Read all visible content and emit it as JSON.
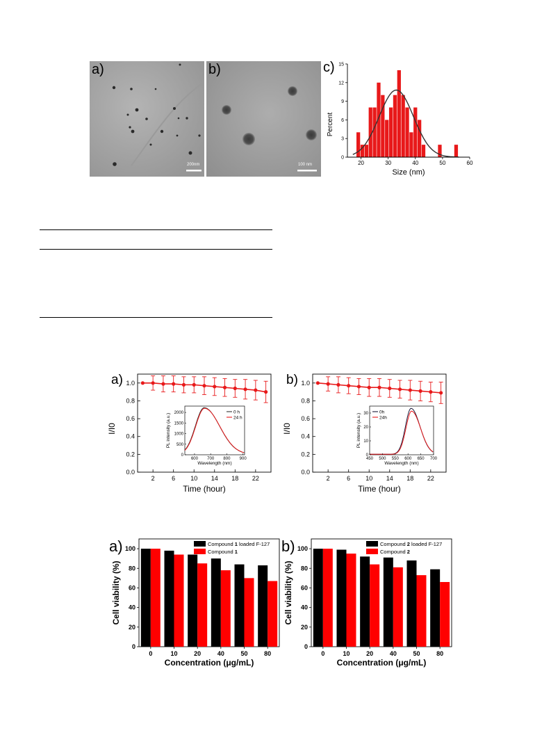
{
  "tem": {
    "panel_a": {
      "label": "a)",
      "scale_bar": "200nm"
    },
    "panel_b": {
      "label": "b)",
      "scale_bar": "100 nm"
    }
  },
  "histogram": {
    "label": "c)",
    "chart_data": {
      "type": "bar",
      "xlabel": "Size (nm)",
      "ylabel": "Percent",
      "xlim": [
        15,
        60
      ],
      "ylim": [
        0,
        15
      ],
      "x_ticks": [
        20,
        30,
        40,
        50,
        60
      ],
      "y_ticks": [
        0,
        3,
        6,
        9,
        12,
        15
      ],
      "bin_width": 1.5,
      "bin_centers": [
        19,
        20.5,
        22,
        23.5,
        25,
        26.5,
        28,
        29.5,
        31,
        32.5,
        34,
        35.5,
        37,
        38.5,
        40,
        41.5,
        43,
        49,
        55
      ],
      "values": [
        4,
        2,
        2,
        8,
        8,
        12,
        10,
        6,
        8,
        10,
        14,
        10,
        8,
        4,
        8,
        6,
        2,
        2,
        2
      ],
      "fit": {
        "type": "gaussian",
        "center": 33,
        "amplitude": 10.8,
        "sigma": 6.3
      },
      "bar_color": "#e8191a",
      "fit_color": "#333333"
    }
  },
  "stability": [
    {
      "label": "a)",
      "chart_data": {
        "type": "line",
        "xlabel": "Time (hour)",
        "ylabel": "I/I0",
        "xlim": [
          -1,
          25
        ],
        "ylim": [
          0,
          1.1
        ],
        "x_ticks": [
          2,
          6,
          10,
          14,
          18,
          22
        ],
        "y_ticks": [
          0.0,
          0.2,
          0.4,
          0.6,
          0.8,
          1.0
        ],
        "x": [
          0,
          2,
          4,
          6,
          8,
          10,
          12,
          14,
          16,
          18,
          20,
          22,
          24
        ],
        "y": [
          1.0,
          1.0,
          0.99,
          0.99,
          0.98,
          0.98,
          0.97,
          0.96,
          0.95,
          0.94,
          0.93,
          0.92,
          0.9
        ],
        "error": [
          0,
          0.08,
          0.09,
          0.09,
          0.09,
          0.09,
          0.1,
          0.1,
          0.1,
          0.1,
          0.11,
          0.11,
          0.12
        ],
        "color": "#e8191a",
        "inset": {
          "xlabel": "Wavelength (nm)",
          "ylabel": "PL intensity (a.u.)",
          "xlim": [
            540,
            910
          ],
          "ylim": [
            0,
            2300
          ],
          "x_ticks": [
            600,
            700,
            800,
            900
          ],
          "y_ticks": [
            0,
            500,
            1000,
            1500,
            2000
          ],
          "series": [
            {
              "name": "0 h",
              "color": "#333333",
              "peak_x": 660,
              "peak_y": 2200,
              "width_left": 55,
              "width_right": 95
            },
            {
              "name": "24 h",
              "color": "#e8191a",
              "peak_x": 662,
              "peak_y": 2170,
              "width_left": 55,
              "width_right": 95
            }
          ]
        }
      }
    },
    {
      "label": "b)",
      "chart_data": {
        "type": "line",
        "xlabel": "Time (hour)",
        "ylabel": "I/I0",
        "xlim": [
          -1,
          25
        ],
        "ylim": [
          0,
          1.1
        ],
        "x_ticks": [
          2,
          6,
          10,
          14,
          18,
          22
        ],
        "y_ticks": [
          0.0,
          0.2,
          0.4,
          0.6,
          0.8,
          1.0
        ],
        "x": [
          0,
          2,
          4,
          6,
          8,
          10,
          12,
          14,
          16,
          18,
          20,
          22,
          24
        ],
        "y": [
          1.0,
          0.99,
          0.98,
          0.97,
          0.96,
          0.95,
          0.95,
          0.94,
          0.93,
          0.92,
          0.91,
          0.9,
          0.89
        ],
        "error": [
          0,
          0.08,
          0.09,
          0.09,
          0.09,
          0.1,
          0.1,
          0.1,
          0.1,
          0.11,
          0.11,
          0.11,
          0.12
        ],
        "color": "#e8191a",
        "inset": {
          "xlabel": "Wavelength (nm)",
          "ylabel": "PL intensity (a.u.)",
          "xlim": [
            450,
            700
          ],
          "ylim": [
            0,
            35
          ],
          "x_ticks": [
            450,
            500,
            550,
            600,
            650,
            700
          ],
          "y_ticks": [
            0,
            10,
            20,
            30
          ],
          "series": [
            {
              "name": "0h",
              "color": "#1a1a3a",
              "peak_x": 612,
              "peak_y": 33,
              "width_left": 22,
              "width_right": 35
            },
            {
              "name": "24h",
              "color": "#e8191a",
              "peak_x": 614,
              "peak_y": 31,
              "width_left": 22,
              "width_right": 35
            }
          ]
        }
      }
    }
  ],
  "viability": [
    {
      "label": "a)",
      "chart_data": {
        "type": "bar",
        "xlabel": "Concentration (μg/mL)",
        "ylabel": "Cell viability (%)",
        "ylim": [
          0,
          110
        ],
        "y_ticks": [
          0,
          20,
          40,
          60,
          80,
          100
        ],
        "categories": [
          "0",
          "10",
          "20",
          "40",
          "50",
          "80"
        ],
        "series": [
          {
            "legend_pre": "Compound ",
            "legend_bold": "1",
            "legend_post": " loaded F-127",
            "color": "#000000",
            "values": [
              100,
              98,
              94,
              90,
              84,
              83
            ]
          },
          {
            "legend_pre": "Compound ",
            "legend_bold": "1",
            "legend_post": "",
            "color": "#ff0000",
            "values": [
              100,
              94,
              85,
              78,
              70,
              67
            ]
          }
        ]
      }
    },
    {
      "label": "b)",
      "chart_data": {
        "type": "bar",
        "xlabel": "Concentration (μg/mL)",
        "ylabel": "Cell viability (%)",
        "ylim": [
          0,
          110
        ],
        "y_ticks": [
          0,
          20,
          40,
          60,
          80,
          100
        ],
        "categories": [
          "0",
          "10",
          "20",
          "40",
          "50",
          "80"
        ],
        "series": [
          {
            "legend_pre": "Compound ",
            "legend_bold": "2",
            "legend_post": " loaded F-127",
            "color": "#000000",
            "values": [
              100,
              99,
              92,
              91,
              88,
              79
            ]
          },
          {
            "legend_pre": "Compound ",
            "legend_bold": "2",
            "legend_post": "",
            "color": "#ff0000",
            "values": [
              100,
              95,
              84,
              81,
              73,
              66
            ]
          }
        ]
      }
    }
  ]
}
